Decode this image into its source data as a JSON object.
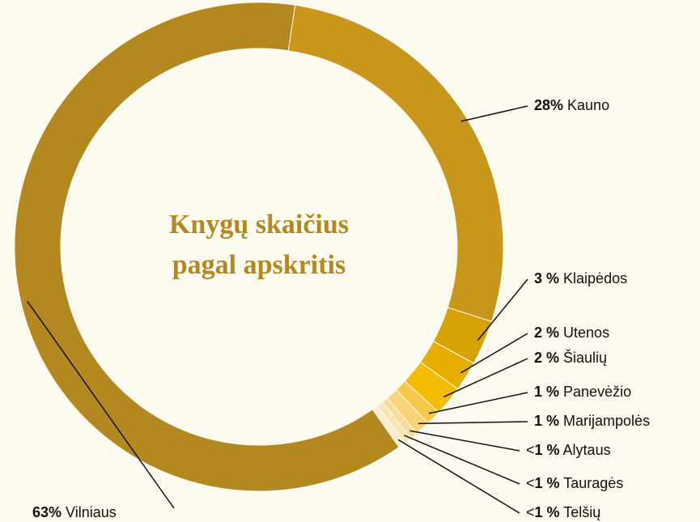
{
  "chart_data": {
    "type": "donut",
    "title": [
      "Knygų skaičius",
      "pagal apskritis"
    ],
    "categories": [
      "Kauno",
      "Klaipėdos",
      "Utenos",
      "Šiaulių",
      "Panevėžio",
      "Marijampolės",
      "Alytaus",
      "Tauragės",
      "Telšių",
      "Vilniaus"
    ],
    "values": [
      28,
      3,
      2,
      2,
      1,
      1,
      0.5,
      0.5,
      0.5,
      63
    ],
    "value_labels": [
      "28%",
      "3 %",
      "2 %",
      "2 %",
      "1 %",
      "1 %",
      "<1 %",
      "<1 %",
      "<1 %",
      "63%"
    ],
    "colors": [
      "#c8961a",
      "#d6a103",
      "#e6ae00",
      "#f4bc05",
      "#f6c84a",
      "#f8d478",
      "#f9dc9a",
      "#fae5b6",
      "#fcedd0",
      "#b3891f"
    ]
  }
}
